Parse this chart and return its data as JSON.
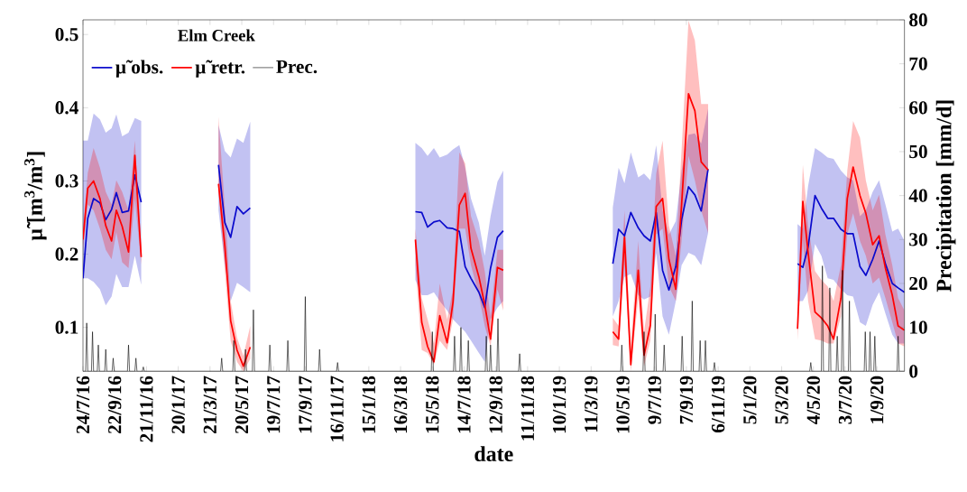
{
  "chart_data": {
    "type": "line",
    "xlabel": "date",
    "ylabel": "μ̃ [m$^{3}$/m$^{3}$]",
    "y2label": "Precipitation [mm/d]",
    "legend_title": "Elm Creek",
    "legend": "top left",
    "xlim": [
      "2016-07-24",
      "2020-10-23"
    ],
    "xticks": [
      {
        "value": "2016-07-24",
        "label": "24/7/16"
      },
      {
        "value": "2016-09-22",
        "label": "22/9/16"
      },
      {
        "value": "2016-11-21",
        "label": "21/11/16"
      },
      {
        "value": "2017-01-20",
        "label": "20/1/17"
      },
      {
        "value": "2017-03-21",
        "label": "21/3/17"
      },
      {
        "value": "2017-05-20",
        "label": "20/5/17"
      },
      {
        "value": "2017-07-19",
        "label": "19/7/17"
      },
      {
        "value": "2017-09-17",
        "label": "17/9/17"
      },
      {
        "value": "2017-11-16",
        "label": "16/11/17"
      },
      {
        "value": "2018-01-15",
        "label": "15/1/18"
      },
      {
        "value": "2018-03-16",
        "label": "16/3/18"
      },
      {
        "value": "2018-05-15",
        "label": "15/5/18"
      },
      {
        "value": "2018-07-14",
        "label": "14/7/18"
      },
      {
        "value": "2018-09-12",
        "label": "12/9/18"
      },
      {
        "value": "2018-11-11",
        "label": "11/11/18"
      },
      {
        "value": "2019-01-10",
        "label": "10/1/19"
      },
      {
        "value": "2019-03-11",
        "label": "11/3/19"
      },
      {
        "value": "2019-05-10",
        "label": "10/5/19"
      },
      {
        "value": "2019-07-09",
        "label": "9/7/19"
      },
      {
        "value": "2019-09-07",
        "label": "7/9/19"
      },
      {
        "value": "2019-11-06",
        "label": "6/11/19"
      },
      {
        "value": "2020-01-05",
        "label": "5/1/20"
      },
      {
        "value": "2020-03-05",
        "label": "5/3/20"
      },
      {
        "value": "2020-05-04",
        "label": "4/5/20"
      },
      {
        "value": "2020-07-03",
        "label": "3/7/20"
      },
      {
        "value": "2020-09-01",
        "label": "1/9/20"
      }
    ],
    "ylim": [
      0.04,
      0.52
    ],
    "yticks": [
      0.1,
      0.2,
      0.3,
      0.4,
      0.5
    ],
    "y2lim": [
      0,
      80
    ],
    "y2ticks": [
      0,
      10,
      20,
      30,
      40,
      50,
      60,
      70,
      80
    ],
    "series": [
      {
        "name": "μ̃ obs.",
        "color": "#0a0acc",
        "x": [
          "2016-07-24",
          "2016-08-02",
          "2016-08-13",
          "2016-08-25",
          "2016-09-05",
          "2016-09-16",
          "2016-09-25",
          "2016-10-06",
          "2016-10-18",
          "2016-10-30",
          "2016-11-11",
          "2017-01-20",
          "2017-04-06",
          "2017-04-18",
          "2017-04-29",
          "2017-05-11",
          "2017-05-23",
          "2017-06-05",
          "2017-12-01",
          "2018-04-13",
          "2018-04-25",
          "2018-05-06",
          "2018-05-18",
          "2018-05-29",
          "2018-06-12",
          "2018-06-23",
          "2018-07-05",
          "2018-07-16",
          "2018-07-27",
          "2018-08-11",
          "2018-08-22",
          "2018-09-02",
          "2018-09-15",
          "2018-09-26",
          "2019-01-01",
          "2019-04-21",
          "2019-05-02",
          "2019-05-13",
          "2019-05-25",
          "2019-06-08",
          "2019-06-19",
          "2019-07-01",
          "2019-07-12",
          "2019-07-24",
          "2019-08-05",
          "2019-08-18",
          "2019-08-29",
          "2019-09-11",
          "2019-09-23",
          "2019-10-05",
          "2019-10-18",
          "2020-01-01",
          "2020-04-04",
          "2020-04-14",
          "2020-04-24",
          "2020-05-07",
          "2020-05-19",
          "2020-05-31",
          "2020-06-11",
          "2020-06-25",
          "2020-07-07",
          "2020-07-18",
          "2020-07-31",
          "2020-08-11",
          "2020-08-24",
          "2020-09-05",
          "2020-09-17",
          "2020-09-30",
          "2020-10-11",
          "2020-10-23"
        ],
        "values": [
          0.167,
          0.249,
          0.276,
          0.27,
          0.247,
          0.261,
          0.284,
          0.257,
          0.259,
          0.308,
          0.271,
          null,
          0.322,
          0.243,
          0.223,
          0.265,
          0.255,
          0.263,
          null,
          0.258,
          0.257,
          0.237,
          0.244,
          0.246,
          0.236,
          0.235,
          0.231,
          0.183,
          0.167,
          0.148,
          0.127,
          0.181,
          0.223,
          0.232,
          null,
          0.187,
          0.234,
          0.225,
          0.257,
          0.236,
          0.225,
          0.218,
          0.257,
          0.178,
          0.151,
          0.183,
          0.247,
          0.292,
          0.281,
          0.259,
          0.316,
          null,
          0.187,
          0.182,
          0.21,
          0.28,
          0.263,
          0.249,
          0.249,
          0.234,
          0.228,
          0.228,
          0.183,
          0.171,
          0.193,
          0.218,
          0.187,
          0.16,
          0.154,
          0.148
        ],
        "lower": [
          0.167,
          0.167,
          0.162,
          0.152,
          0.13,
          0.142,
          0.173,
          0.155,
          0.155,
          0.198,
          0.158,
          null,
          0.26,
          0.186,
          0.136,
          0.161,
          0.155,
          0.148,
          null,
          0.165,
          0.144,
          0.144,
          0.148,
          0.136,
          0.123,
          0.111,
          0.102,
          0.094,
          0.082,
          0.065,
          0.053,
          0.111,
          0.127,
          0.136,
          null,
          0.115,
          0.136,
          0.169,
          0.173,
          0.144,
          0.138,
          0.142,
          0.202,
          0.115,
          0.09,
          0.136,
          0.185,
          0.202,
          0.198,
          0.185,
          0.229,
          null,
          0.136,
          0.136,
          0.15,
          0.214,
          0.198,
          0.167,
          0.165,
          0.152,
          0.144,
          0.142,
          0.107,
          0.102,
          0.131,
          0.148,
          0.119,
          0.09,
          0.078,
          0.078
        ],
        "upper": [
          0.355,
          0.355,
          0.392,
          0.384,
          0.366,
          0.372,
          0.391,
          0.361,
          0.366,
          0.386,
          0.382,
          null,
          0.376,
          0.341,
          0.332,
          0.358,
          0.352,
          0.381,
          null,
          0.352,
          0.345,
          0.334,
          0.345,
          0.332,
          0.336,
          0.343,
          0.349,
          0.318,
          0.276,
          0.243,
          0.198,
          0.252,
          0.299,
          0.314,
          null,
          0.264,
          0.318,
          0.297,
          0.339,
          0.305,
          0.31,
          0.301,
          0.349,
          0.26,
          0.227,
          0.245,
          0.314,
          0.363,
          0.365,
          0.351,
          0.399,
          null,
          0.241,
          0.235,
          0.293,
          0.345,
          0.339,
          0.332,
          0.33,
          0.314,
          0.305,
          0.301,
          0.252,
          0.26,
          0.285,
          0.301,
          0.268,
          0.231,
          0.235,
          0.218
        ]
      },
      {
        "name": "μ̃ retr.",
        "color": "#ff0000",
        "x": [
          "2016-07-24",
          "2016-08-02",
          "2016-08-13",
          "2016-08-25",
          "2016-09-05",
          "2016-09-16",
          "2016-09-25",
          "2016-10-06",
          "2016-10-18",
          "2016-10-30",
          "2016-11-11",
          "2017-01-20",
          "2017-04-06",
          "2017-04-18",
          "2017-04-29",
          "2017-05-11",
          "2017-05-23",
          "2017-06-05",
          "2017-12-01",
          "2018-04-13",
          "2018-04-25",
          "2018-05-06",
          "2018-05-18",
          "2018-05-29",
          "2018-06-12",
          "2018-06-23",
          "2018-07-05",
          "2018-07-16",
          "2018-07-27",
          "2018-08-11",
          "2018-08-22",
          "2018-09-02",
          "2018-09-15",
          "2018-09-26",
          "2019-01-01",
          "2019-04-21",
          "2019-05-02",
          "2019-05-13",
          "2019-05-25",
          "2019-06-08",
          "2019-06-19",
          "2019-07-01",
          "2019-07-12",
          "2019-07-24",
          "2019-08-05",
          "2019-08-18",
          "2019-08-29",
          "2019-09-11",
          "2019-09-23",
          "2019-10-05",
          "2019-10-18",
          "2020-01-01",
          "2020-04-04",
          "2020-04-14",
          "2020-04-24",
          "2020-05-07",
          "2020-05-19",
          "2020-05-31",
          "2020-06-11",
          "2020-06-25",
          "2020-07-07",
          "2020-07-18",
          "2020-07-31",
          "2020-08-11",
          "2020-08-24",
          "2020-09-05",
          "2020-09-17",
          "2020-09-30",
          "2020-10-11",
          "2020-10-23"
        ],
        "values": [
          0.22,
          0.29,
          0.3,
          0.276,
          0.239,
          0.218,
          0.26,
          0.238,
          0.203,
          0.335,
          0.196,
          null,
          0.296,
          0.211,
          0.109,
          0.069,
          0.047,
          0.073,
          null,
          0.22,
          0.107,
          0.074,
          0.053,
          0.116,
          0.079,
          0.134,
          0.267,
          0.283,
          0.208,
          0.169,
          0.131,
          0.084,
          0.182,
          0.178,
          null,
          0.094,
          0.084,
          0.223,
          0.049,
          0.178,
          0.062,
          0.103,
          0.265,
          0.276,
          0.193,
          0.152,
          0.268,
          0.419,
          0.396,
          0.326,
          0.315,
          null,
          0.098,
          0.272,
          0.202,
          0.121,
          0.113,
          0.102,
          0.084,
          0.14,
          0.276,
          0.319,
          0.28,
          0.256,
          0.213,
          0.225,
          0.181,
          0.144,
          0.102,
          0.096
        ],
        "lower": [
          0.206,
          0.268,
          0.26,
          0.235,
          0.206,
          0.193,
          0.23,
          0.189,
          0.181,
          0.276,
          0.186,
          null,
          0.285,
          0.177,
          0.081,
          0.053,
          0.04,
          0.057,
          null,
          0.185,
          0.069,
          0.065,
          0.049,
          0.082,
          0.069,
          0.111,
          0.235,
          0.235,
          0.185,
          0.144,
          0.102,
          0.074,
          0.152,
          0.123,
          null,
          0.076,
          0.074,
          0.185,
          0.04,
          0.14,
          0.047,
          0.082,
          0.227,
          0.235,
          0.156,
          0.136,
          0.218,
          0.334,
          0.301,
          0.26,
          0.229,
          null,
          0.082,
          0.218,
          0.136,
          0.084,
          0.082,
          0.078,
          0.078,
          0.115,
          0.227,
          0.256,
          0.218,
          0.198,
          0.16,
          0.168,
          0.14,
          0.107,
          0.078,
          0.074
        ],
        "upper": [
          0.235,
          0.311,
          0.345,
          0.318,
          0.285,
          0.268,
          0.301,
          0.285,
          0.26,
          0.355,
          0.211,
          null,
          0.388,
          0.264,
          0.136,
          0.086,
          0.061,
          0.102,
          null,
          0.235,
          0.14,
          0.111,
          0.078,
          0.16,
          0.111,
          0.152,
          0.339,
          0.324,
          0.252,
          0.218,
          0.177,
          0.115,
          0.206,
          0.206,
          null,
          0.113,
          0.102,
          0.26,
          0.074,
          0.218,
          0.094,
          0.156,
          0.31,
          0.355,
          0.239,
          0.198,
          0.343,
          0.519,
          0.492,
          0.405,
          0.405,
          null,
          0.119,
          0.322,
          0.239,
          0.177,
          0.165,
          0.156,
          0.136,
          0.185,
          0.314,
          0.382,
          0.359,
          0.301,
          0.26,
          0.281,
          0.227,
          0.185,
          0.14,
          0.123
        ]
      },
      {
        "name": "Prec.",
        "color": "#000000",
        "axis": "y2",
        "x": [
          "2016-07-24",
          "2016-07-29",
          "2016-07-31",
          "2016-08-02",
          "2016-08-09",
          "2016-08-11",
          "2016-08-13",
          "2016-08-20",
          "2016-08-22",
          "2016-08-24",
          "2016-09-03",
          "2016-09-05",
          "2016-09-07",
          "2016-09-17",
          "2016-09-19",
          "2016-09-21",
          "2016-10-16",
          "2016-10-18",
          "2016-10-20",
          "2016-10-30",
          "2016-11-01",
          "2016-11-03",
          "2016-11-13",
          "2016-11-15",
          "2016-11-17",
          "2017-04-10",
          "2017-04-12",
          "2017-04-14",
          "2017-05-03",
          "2017-05-05",
          "2017-05-07",
          "2017-05-25",
          "2017-05-27",
          "2017-05-29",
          "2017-06-09",
          "2017-06-11",
          "2017-06-13",
          "2017-07-10",
          "2017-07-12",
          "2017-07-14",
          "2017-08-13",
          "2017-08-15",
          "2017-08-17",
          "2017-09-15",
          "2017-09-17",
          "2017-09-19",
          "2017-10-12",
          "2017-10-14",
          "2017-10-16",
          "2017-11-15",
          "2017-11-17",
          "2017-11-19",
          "2018-05-13",
          "2018-05-15",
          "2018-05-17",
          "2018-06-24",
          "2018-06-26",
          "2018-06-28",
          "2018-07-06",
          "2018-07-08",
          "2018-07-10",
          "2018-07-20",
          "2018-07-22",
          "2018-07-24",
          "2018-08-23",
          "2018-08-25",
          "2018-08-27",
          "2018-08-31",
          "2018-09-02",
          "2018-09-04",
          "2018-09-14",
          "2018-09-16",
          "2018-09-18",
          "2018-10-25",
          "2018-10-27",
          "2018-10-29",
          "2019-05-06",
          "2019-05-08",
          "2019-05-10",
          "2019-06-17",
          "2019-06-19",
          "2019-06-21",
          "2019-07-08",
          "2019-07-10",
          "2019-07-12",
          "2019-07-25",
          "2019-07-27",
          "2019-07-29",
          "2019-08-28",
          "2019-08-30",
          "2019-09-01",
          "2019-09-16",
          "2019-09-18",
          "2019-09-20",
          "2019-10-01",
          "2019-10-03",
          "2019-10-05",
          "2019-10-11",
          "2019-10-13",
          "2019-10-15",
          "2019-10-28",
          "2019-10-30",
          "2019-11-01",
          "2020-04-27",
          "2020-04-29",
          "2020-05-01",
          "2020-05-19",
          "2020-05-21",
          "2020-05-23",
          "2020-06-02",
          "2020-06-04",
          "2020-06-06",
          "2020-06-16",
          "2020-06-18",
          "2020-06-20",
          "2020-06-26",
          "2020-06-28",
          "2020-06-30",
          "2020-07-09",
          "2020-07-11",
          "2020-07-13",
          "2020-08-08",
          "2020-08-10",
          "2020-08-12",
          "2020-08-17",
          "2020-08-19",
          "2020-08-21",
          "2020-08-26",
          "2020-08-28",
          "2020-08-30",
          "2020-10-09",
          "2020-10-11",
          "2020-10-13",
          "2020-10-23"
        ],
        "values": [
          0,
          0,
          11,
          0,
          0,
          9,
          0,
          0,
          6,
          0,
          0,
          5,
          0,
          0,
          3,
          0,
          0,
          6,
          0,
          0,
          3,
          0,
          0,
          1,
          0,
          0,
          3,
          0,
          0,
          7,
          0,
          0,
          5,
          0,
          0,
          14,
          0,
          0,
          6,
          0,
          0,
          7,
          0,
          0,
          17,
          0,
          0,
          5,
          0,
          0,
          2,
          0,
          0,
          9,
          0,
          0,
          8,
          0,
          0,
          10,
          0,
          0,
          7,
          0,
          0,
          8,
          0,
          0,
          6,
          0,
          0,
          12,
          0,
          0,
          4,
          0,
          0,
          6,
          0,
          0,
          9,
          0,
          0,
          13,
          0,
          0,
          6,
          0,
          0,
          8,
          0,
          0,
          16,
          0,
          0,
          7,
          0,
          0,
          7,
          0,
          0,
          2,
          0,
          0,
          2,
          0,
          0,
          24,
          0,
          0,
          19,
          0,
          0,
          8,
          0,
          0,
          23,
          0,
          0,
          16,
          0,
          0,
          9,
          0,
          0,
          9,
          0,
          0,
          8,
          0,
          0,
          8,
          0,
          0
        ]
      }
    ]
  }
}
